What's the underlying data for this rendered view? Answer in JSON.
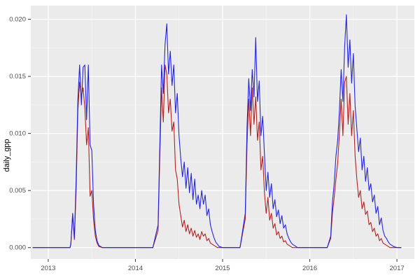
{
  "chart_data": {
    "type": "line",
    "title": "",
    "xlabel": "",
    "ylabel": "daily_gpp",
    "legend": "none",
    "grid": true,
    "xlim": [
      2012.8,
      2017.2
    ],
    "ylim": [
      -0.001,
      0.0212
    ],
    "x_ticks": {
      "values": [
        2013,
        2014,
        2015,
        2016,
        2017
      ],
      "labels": [
        "2013",
        "2014",
        "2015",
        "2016",
        "2017"
      ]
    },
    "y_ticks": {
      "values": [
        0.0,
        0.005,
        0.01,
        0.015,
        0.02
      ],
      "labels": [
        "0.000",
        "0.005",
        "0.010",
        "0.015",
        "0.020"
      ]
    },
    "x_minor": [
      2013.5,
      2014.5,
      2015.5,
      2016.5
    ],
    "y_minor": [
      0.0025,
      0.0075,
      0.0125,
      0.0175
    ],
    "theme": {
      "panel_bg": "#EBEBEB",
      "grid_major": "#FFFFFF",
      "grid_minor": "#F7F7F7",
      "tick_mark": "#333333",
      "tick_text": "#4D4D4D",
      "axis_title": "#000000",
      "outer_bg": "#FFFFFF"
    },
    "x": [
      2012.82,
      2013.0,
      2013.15,
      2013.25,
      2013.26,
      2013.28,
      2013.3,
      2013.32,
      2013.34,
      2013.36,
      2013.38,
      2013.4,
      2013.42,
      2013.44,
      2013.46,
      2013.48,
      2013.5,
      2013.52,
      2013.54,
      2013.56,
      2013.58,
      2013.62,
      2013.75,
      2013.9,
      2014.05,
      2014.2,
      2014.26,
      2014.28,
      2014.3,
      2014.32,
      2014.34,
      2014.36,
      2014.38,
      2014.4,
      2014.42,
      2014.44,
      2014.46,
      2014.48,
      2014.5,
      2014.52,
      2014.54,
      2014.56,
      2014.58,
      2014.6,
      2014.62,
      2014.64,
      2014.66,
      2014.68,
      2014.7,
      2014.72,
      2014.74,
      2014.76,
      2014.78,
      2014.8,
      2014.82,
      2014.84,
      2014.86,
      2014.88,
      2014.9,
      2014.92,
      2014.94,
      2014.96,
      2015.0,
      2015.1,
      2015.2,
      2015.26,
      2015.28,
      2015.3,
      2015.32,
      2015.34,
      2015.36,
      2015.38,
      2015.4,
      2015.42,
      2015.44,
      2015.46,
      2015.48,
      2015.5,
      2015.52,
      2015.54,
      2015.56,
      2015.58,
      2015.6,
      2015.62,
      2015.64,
      2015.66,
      2015.68,
      2015.7,
      2015.72,
      2015.74,
      2015.76,
      2015.78,
      2015.8,
      2015.82,
      2015.84,
      2015.86,
      2015.9,
      2016.0,
      2016.1,
      2016.2,
      2016.24,
      2016.26,
      2016.28,
      2016.3,
      2016.32,
      2016.34,
      2016.36,
      2016.38,
      2016.4,
      2016.42,
      2016.44,
      2016.46,
      2016.48,
      2016.5,
      2016.52,
      2016.54,
      2016.56,
      2016.58,
      2016.6,
      2016.62,
      2016.64,
      2016.66,
      2016.68,
      2016.7,
      2016.72,
      2016.74,
      2016.76,
      2016.78,
      2016.8,
      2016.82,
      2016.84,
      2016.86,
      2016.88,
      2016.9,
      2016.92,
      2016.94,
      2016.96,
      2017.0,
      2017.05
    ],
    "series": [
      {
        "name": "series-red",
        "color": "#B22222",
        "values": [
          0,
          0,
          0,
          0,
          0.0003,
          0.0028,
          0.0007,
          0.005,
          0.012,
          0.0145,
          0.0132,
          0.014,
          0.0122,
          0.009,
          0.0105,
          0.0045,
          0.005,
          0.0024,
          0.001,
          0.0004,
          0.0001,
          0,
          0,
          0,
          0,
          0,
          0.0015,
          0.008,
          0.014,
          0.011,
          0.016,
          0.0152,
          0.0118,
          0.013,
          0.0102,
          0.011,
          0.0068,
          0.006,
          0.0038,
          0.0028,
          0.0018,
          0.0024,
          0.0014,
          0.002,
          0.0012,
          0.0017,
          0.001,
          0.0015,
          0.0009,
          0.0012,
          0.0007,
          0.0014,
          0.001,
          0.0012,
          0.0006,
          0.0008,
          0.0004,
          0.0003,
          0.0002,
          0.0001,
          0,
          0,
          0,
          0,
          0,
          0.0025,
          0.009,
          0.013,
          0.0098,
          0.014,
          0.0108,
          0.0132,
          0.0094,
          0.011,
          0.0068,
          0.008,
          0.0048,
          0.003,
          0.0044,
          0.0024,
          0.003,
          0.0017,
          0.0021,
          0.0011,
          0.0014,
          0.0008,
          0.001,
          0.0005,
          0.0006,
          0.0003,
          0.0002,
          0.0001,
          0,
          0,
          0,
          0,
          0,
          0,
          0,
          0,
          0.0008,
          0.003,
          0.0044,
          0.006,
          0.0074,
          0.01,
          0.013,
          0.0098,
          0.0145,
          0.015,
          0.0108,
          0.0135,
          0.0098,
          0.012,
          0.008,
          0.006,
          0.0044,
          0.005,
          0.0034,
          0.004,
          0.0029,
          0.0032,
          0.002,
          0.0022,
          0.0014,
          0.0017,
          0.001,
          0.0012,
          0.0006,
          0.0008,
          0.0004,
          0.0003,
          0.0002,
          0.0001,
          0,
          0,
          0,
          0,
          0
        ]
      },
      {
        "name": "series-blue",
        "color": "#2424DC",
        "values": [
          0,
          0,
          0,
          0,
          0.0004,
          0.003,
          0.0008,
          0.006,
          0.013,
          0.016,
          0.0125,
          0.0158,
          0.016,
          0.0112,
          0.016,
          0.009,
          0.0085,
          0.0038,
          0.0015,
          0.0006,
          0.0002,
          0,
          0,
          0,
          0,
          0,
          0.002,
          0.009,
          0.016,
          0.0135,
          0.0178,
          0.0196,
          0.0152,
          0.0172,
          0.0142,
          0.016,
          0.0118,
          0.0135,
          0.0098,
          0.0078,
          0.0062,
          0.0075,
          0.0052,
          0.007,
          0.0048,
          0.0065,
          0.0042,
          0.006,
          0.0038,
          0.0046,
          0.0034,
          0.005,
          0.0038,
          0.0046,
          0.0028,
          0.0034,
          0.002,
          0.0014,
          0.0009,
          0.0005,
          0.0003,
          0.0001,
          0,
          0,
          0,
          0.003,
          0.0105,
          0.0148,
          0.012,
          0.0156,
          0.0132,
          0.0184,
          0.0128,
          0.0146,
          0.0098,
          0.0115,
          0.0082,
          0.005,
          0.0066,
          0.0044,
          0.0056,
          0.0034,
          0.0042,
          0.0027,
          0.0033,
          0.0021,
          0.0028,
          0.0017,
          0.002,
          0.0012,
          0.0008,
          0.0005,
          0.0003,
          0.0002,
          0.0001,
          0,
          0,
          0,
          0,
          0,
          0.001,
          0.004,
          0.0056,
          0.008,
          0.0094,
          0.012,
          0.0156,
          0.0128,
          0.0176,
          0.0204,
          0.0158,
          0.0182,
          0.0144,
          0.017,
          0.0124,
          0.0104,
          0.0084,
          0.0096,
          0.0068,
          0.008,
          0.0058,
          0.007,
          0.005,
          0.0056,
          0.004,
          0.0046,
          0.003,
          0.0036,
          0.002,
          0.0026,
          0.0015,
          0.001,
          0.0008,
          0.0005,
          0.0003,
          0.0002,
          0.0001,
          0,
          0
        ]
      }
    ]
  }
}
